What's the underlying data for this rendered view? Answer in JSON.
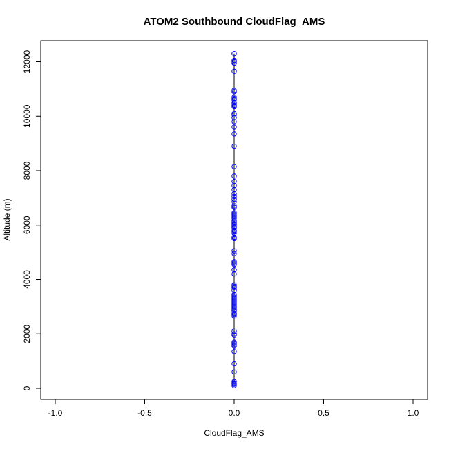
{
  "chart_data": {
    "type": "scatter",
    "title": "ATOM2 Southbound CloudFlag_AMS",
    "xlabel": "CloudFlag_AMS",
    "ylabel": "Altitude (m)",
    "xlim": [
      -1.0,
      1.0
    ],
    "ylim": [
      0,
      12300
    ],
    "x_ticks": [
      "-1.0",
      "-0.5",
      "0.0",
      "0.5",
      "1.0"
    ],
    "y_ticks": [
      "0",
      "2000",
      "4000",
      "6000",
      "8000",
      "10000",
      "12000"
    ],
    "grid": false,
    "legend": "none",
    "point_color": "#0000ff",
    "line_color": "#000000",
    "series": [
      {
        "x": [
          0,
          0,
          0,
          0,
          0,
          0,
          0,
          0,
          0,
          0,
          0,
          0,
          0,
          0,
          0,
          0,
          0,
          0,
          0,
          0,
          0,
          0,
          0,
          0,
          0,
          0,
          0,
          0,
          0,
          0,
          0,
          0,
          0,
          0,
          0,
          0,
          0,
          0,
          0,
          0,
          0,
          0,
          0,
          0,
          0,
          0,
          0,
          0,
          0,
          0,
          0,
          0,
          0,
          0,
          0,
          0,
          0,
          0,
          0,
          0,
          0,
          0,
          0,
          0,
          0,
          0,
          0,
          0,
          0,
          0,
          0,
          0,
          0,
          0,
          0,
          0,
          0,
          0,
          0,
          0,
          0,
          0,
          0,
          0,
          0,
          0,
          0,
          0,
          0,
          0
        ],
        "y": [
          12300,
          12050,
          12000,
          11650,
          10950,
          10700,
          10600,
          10450,
          10350,
          10100,
          10050,
          9800,
          9600,
          9350,
          8900,
          8150,
          7800,
          7600,
          7450,
          7300,
          7050,
          6950,
          6850,
          6700,
          6450,
          6350,
          6250,
          6100,
          6000,
          5900,
          5750,
          5700,
          5550,
          5500,
          5050,
          4950,
          4650,
          4550,
          4350,
          4200,
          3800,
          3700,
          3600,
          3350,
          3300,
          3250,
          3150,
          3100,
          3050,
          2900,
          2850,
          2700,
          2650,
          2100,
          1950,
          1700,
          1650,
          1550,
          1350,
          900,
          600,
          250,
          200,
          150,
          100,
          6400,
          6300,
          3400,
          2000,
          10650,
          10500,
          10400,
          6650,
          6050,
          5950,
          3750,
          3200,
          2950,
          1600,
          11950,
          10900,
          9950,
          7150,
          6150,
          5800,
          4600,
          3450,
          3000,
          2750,
          180
        ]
      }
    ]
  }
}
